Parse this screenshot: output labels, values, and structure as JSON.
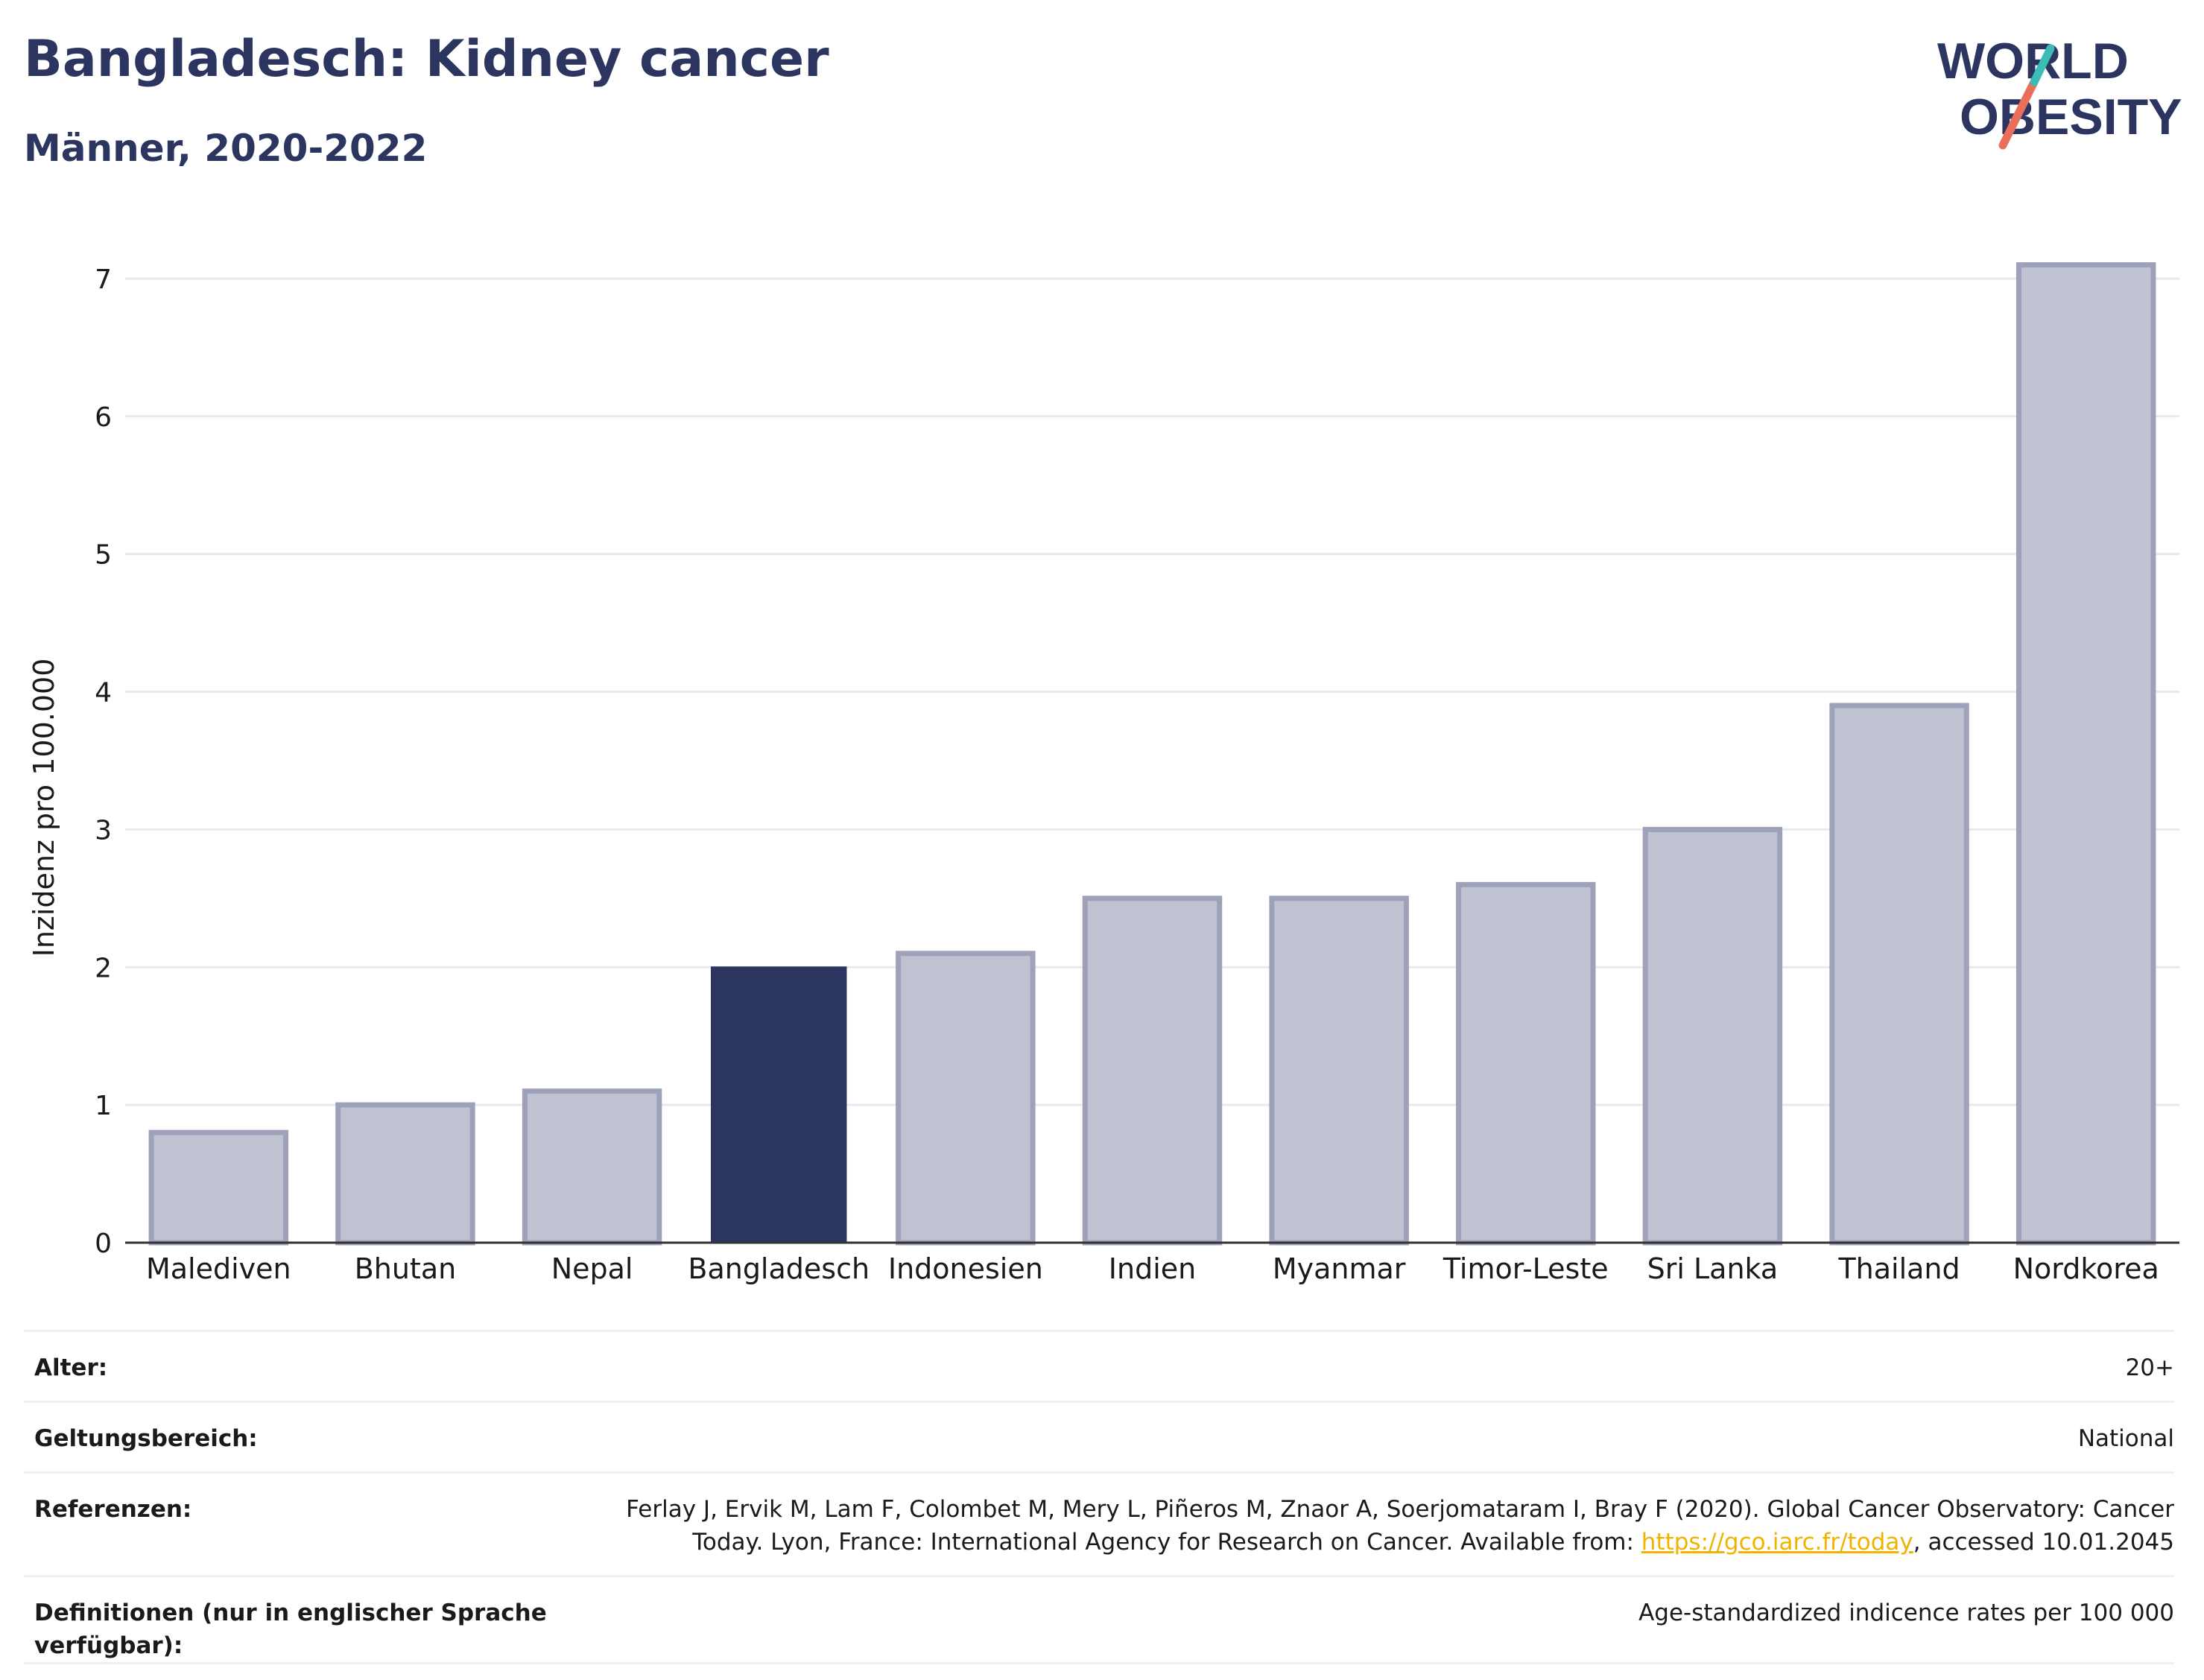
{
  "header": {
    "title": "Bangladesch: Kidney cancer",
    "subtitle": "Männer, 2020-2022"
  },
  "logo": {
    "line1": "WORLD",
    "line2": "OBESITY"
  },
  "colors": {
    "highlight": "#2b3560",
    "bar": "#bfc2d0",
    "bar_border": "#9da2ba",
    "grid": "#e8e9ee",
    "text_navy": "#2b3560"
  },
  "chart_data": {
    "type": "bar",
    "categories": [
      "Malediven",
      "Bhutan",
      "Nepal",
      "Bangladesch",
      "Indonesien",
      "Indien",
      "Myanmar",
      "Timor-Leste",
      "Sri Lanka",
      "Thailand",
      "Nordkorea"
    ],
    "values": [
      0.8,
      1.0,
      1.1,
      2.0,
      2.1,
      2.5,
      2.5,
      2.6,
      3.0,
      3.9,
      7.1
    ],
    "highlight": "Bangladesch",
    "title": "Bangladesch: Kidney cancer",
    "ylabel": "Inzidenz pro 100.000",
    "xlabel": "",
    "ylim": [
      0,
      7.4
    ],
    "yticks": [
      0,
      1,
      2,
      3,
      4,
      5,
      6,
      7
    ],
    "grid": true
  },
  "info": {
    "age_label": "Alter:",
    "age_value": "20+",
    "scope_label": "Geltungsbereich:",
    "scope_value": "National",
    "refs_label": "Referenzen:",
    "refs_text": "Ferlay J, Ervik M, Lam F, Colombet M, Mery L, Piñeros M, Znaor A, Soerjomataram I, Bray F (2020). Global Cancer Observatory: Cancer Today. Lyon, France: International Agency for Research on Cancer. Available from: ",
    "refs_link": "https://gco.iarc.fr/today",
    "refs_suffix": ", accessed 10.01.2045",
    "defs_label": "Definitionen (nur in englischer Sprache verfügbar):",
    "defs_value": "Age-standardized indicence rates per 100 000"
  }
}
